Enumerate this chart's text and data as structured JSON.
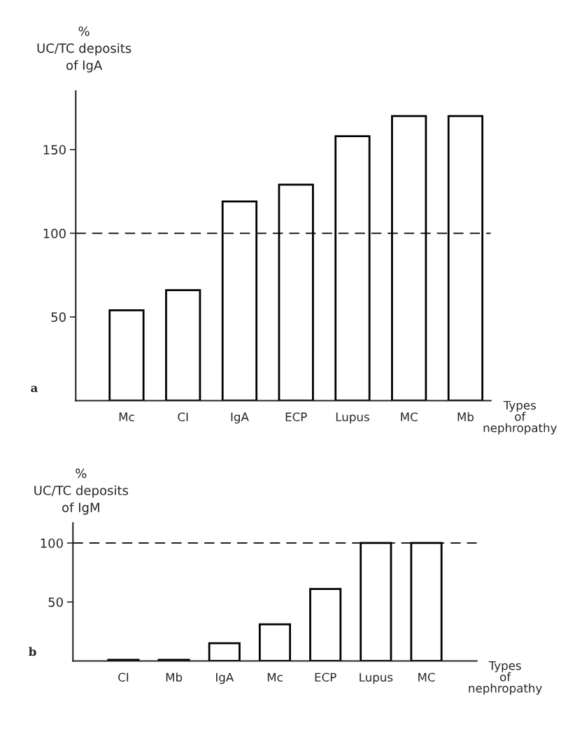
{
  "chart_data": [
    {
      "type": "bar",
      "ylabel": "%\nUC/TC deposits\nof IgA",
      "xlabel": "Types\nof\nnephropathy",
      "annotations": [
        "a"
      ],
      "categories": [
        "Mc",
        "CI",
        "IgA",
        "ECP",
        "Lupus",
        "MC",
        "Mb"
      ],
      "values": [
        54,
        66,
        119,
        129,
        158,
        170,
        170
      ],
      "color": "#ffffff",
      "ylim": [
        0,
        185
      ],
      "yticks": [
        50,
        100,
        150
      ],
      "grid": false,
      "legend": false,
      "ref_lines": [
        {
          "axis": "y",
          "value": 100,
          "line_style": "dashed",
          "color": "#000000"
        }
      ]
    },
    {
      "type": "bar",
      "ylabel": "%\nUC/TC deposits\nof IgM",
      "xlabel": "Types\nof\nnephropathy",
      "annotations": [
        "b"
      ],
      "categories": [
        "CI",
        "Mb",
        "IgA",
        "Mc",
        "ECP",
        "Lupus",
        "MC"
      ],
      "values": [
        1,
        1,
        15,
        31,
        61,
        100,
        100
      ],
      "color": "#ffffff",
      "ylim": [
        0,
        117
      ],
      "yticks": [
        50,
        100
      ],
      "grid": false,
      "legend": false,
      "ref_lines": [
        {
          "axis": "y",
          "value": 100,
          "line_style": "dashed",
          "color": "#000000"
        }
      ]
    }
  ]
}
